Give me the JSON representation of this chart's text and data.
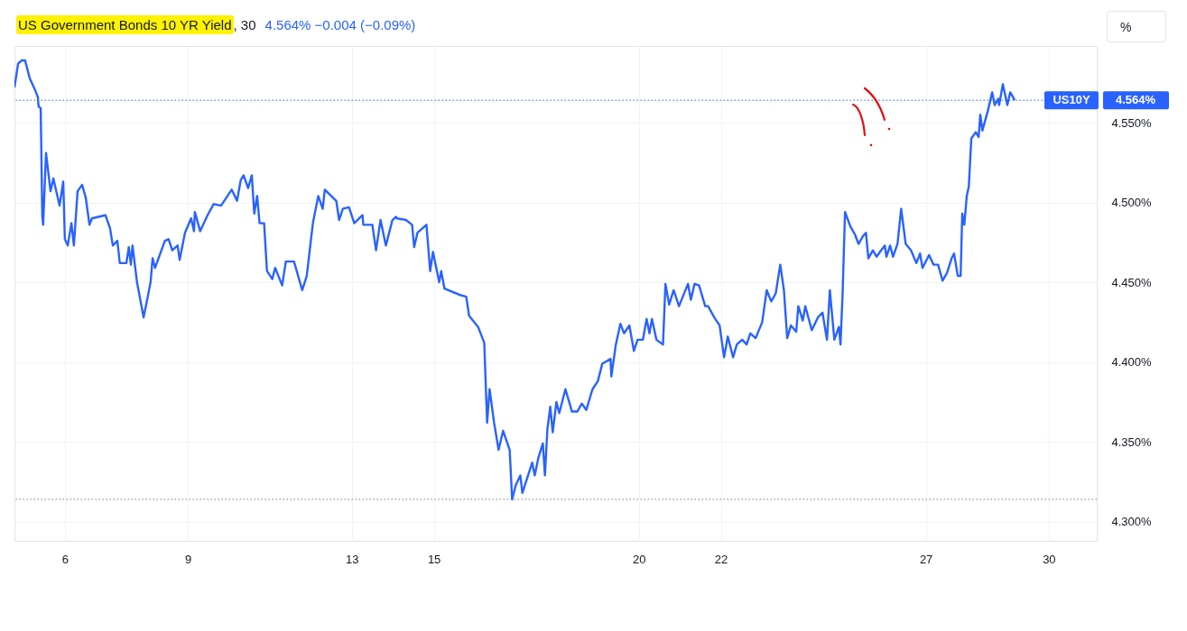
{
  "chart_data": {
    "type": "line",
    "title": "US Government Bonds 10 YR Yield",
    "subtitle": "4.564%  −0.004 (−0.09%)",
    "annotations": [
      ", 30",
      "%"
    ],
    "xlim": [
      4.77,
      31.17
    ],
    "xticks": [
      6,
      9,
      13,
      15,
      20,
      22,
      27,
      30
    ],
    "ylim": [
      4.288,
      4.598
    ],
    "yticks": [
      {
        "value": 4.3,
        "label": "4.300%"
      },
      {
        "value": 4.35,
        "label": "4.350%"
      },
      {
        "value": 4.4,
        "label": "4.400%"
      },
      {
        "value": 4.45,
        "label": "4.450%"
      },
      {
        "value": 4.5,
        "label": "4.500%"
      },
      {
        "value": 4.55,
        "label": "4.550%"
      }
    ],
    "grid": true,
    "line_style": "solid",
    "ref_lines": [
      {
        "axis": "y",
        "value": 4.564,
        "label": "4.564%",
        "color": "#2962ff",
        "line_style": "dotted"
      },
      {
        "axis": "y",
        "value": 4.314,
        "color": "#787b86",
        "line_style": "dotted"
      }
    ],
    "series": [
      {
        "name": "US10Y",
        "color": "#2962ff",
        "x": [
          4.77,
          4.86,
          4.95,
          5.03,
          5.14,
          5.28,
          5.34,
          5.36,
          5.41,
          5.45,
          5.47,
          5.54,
          5.65,
          5.72,
          5.87,
          5.96,
          6.0,
          6.07,
          6.16,
          6.22,
          6.31,
          6.42,
          6.51,
          6.6,
          6.66,
          6.99,
          7.1,
          7.17,
          7.28,
          7.34,
          7.5,
          7.56,
          7.61,
          7.65,
          7.76,
          7.92,
          8.0,
          8.09,
          8.14,
          8.2,
          8.44,
          8.53,
          8.62,
          8.75,
          8.8,
          8.93,
          9.08,
          9.15,
          9.17,
          9.3,
          9.48,
          9.63,
          9.81,
          10.07,
          10.2,
          10.29,
          10.36,
          10.47,
          10.56,
          10.62,
          10.69,
          10.75,
          10.86,
          10.93,
          11.06,
          11.13,
          11.3,
          11.39,
          11.59,
          11.79,
          11.9,
          12.05,
          12.18,
          12.29,
          12.34,
          12.62,
          12.69,
          12.78,
          12.93,
          13.06,
          13.26,
          13.28,
          13.5,
          13.59,
          13.7,
          13.83,
          13.99,
          14.08,
          14.1,
          14.32,
          14.47,
          14.52,
          14.6,
          14.82,
          14.91,
          14.98,
          15.13,
          15.18,
          15.26,
          15.64,
          15.79,
          15.86,
          16.08,
          16.23,
          16.3,
          16.36,
          16.47,
          16.58,
          16.69,
          16.85,
          16.91,
          17.0,
          17.11,
          17.16,
          17.4,
          17.46,
          17.55,
          17.66,
          17.71,
          17.77,
          17.84,
          17.9,
          17.99,
          18.06,
          18.21,
          18.37,
          18.5,
          18.61,
          18.72,
          18.87,
          19.0,
          19.11,
          19.31,
          19.33,
          19.44,
          19.55,
          19.64,
          19.77,
          19.88,
          19.97,
          20.1,
          20.19,
          20.26,
          20.32,
          20.43,
          20.59,
          20.65,
          20.74,
          20.85,
          20.98,
          21.2,
          21.27,
          21.36,
          21.47,
          21.62,
          21.69,
          21.84,
          21.97,
          22.08,
          22.17,
          22.3,
          22.39,
          22.52,
          22.63,
          22.72,
          22.85,
          23.01,
          23.12,
          23.23,
          23.34,
          23.45,
          23.54,
          23.62,
          23.71,
          23.84,
          23.89,
          24.0,
          24.06,
          24.22,
          24.37,
          24.48,
          24.59,
          24.66,
          24.77,
          24.88,
          24.92,
          24.97,
          25.03,
          25.16,
          25.27,
          25.36,
          25.47,
          25.54,
          25.6,
          25.71,
          25.8,
          25.91,
          26.0,
          26.04,
          26.13,
          26.2,
          26.31,
          26.4,
          26.51,
          26.64,
          26.77,
          26.86,
          26.92,
          27.08,
          27.19,
          27.3,
          27.41,
          27.52,
          27.63,
          27.69,
          27.78,
          27.85,
          27.89,
          27.94,
          28.0,
          28.05,
          28.11,
          28.22,
          28.29,
          28.33,
          28.38,
          28.51,
          28.62,
          28.68,
          28.77,
          28.79,
          28.88,
          28.99,
          29.06,
          29.17
        ],
        "values": [
          4.572,
          4.587,
          4.589,
          4.589,
          4.578,
          4.57,
          4.566,
          4.56,
          4.559,
          4.491,
          4.486,
          4.531,
          4.507,
          4.515,
          4.498,
          4.513,
          4.477,
          4.473,
          4.487,
          4.473,
          4.507,
          4.511,
          4.503,
          4.486,
          4.49,
          4.492,
          4.484,
          4.473,
          4.476,
          4.462,
          4.462,
          4.472,
          4.461,
          4.473,
          4.45,
          4.428,
          4.438,
          4.45,
          4.465,
          4.459,
          4.476,
          4.477,
          4.47,
          4.473,
          4.464,
          4.481,
          4.49,
          4.482,
          4.494,
          4.482,
          4.492,
          4.499,
          4.498,
          4.508,
          4.501,
          4.514,
          4.517,
          4.509,
          4.517,
          4.493,
          4.504,
          4.487,
          4.487,
          4.457,
          4.452,
          4.459,
          4.448,
          4.463,
          4.463,
          4.445,
          4.454,
          4.487,
          4.504,
          4.496,
          4.508,
          4.501,
          4.489,
          4.496,
          4.497,
          4.487,
          4.492,
          4.486,
          4.486,
          4.47,
          4.489,
          4.473,
          4.489,
          4.491,
          4.49,
          4.489,
          4.486,
          4.472,
          4.481,
          4.486,
          4.457,
          4.469,
          4.45,
          4.457,
          4.446,
          4.442,
          4.441,
          4.429,
          4.422,
          4.412,
          4.362,
          4.383,
          4.362,
          4.345,
          4.357,
          4.345,
          4.314,
          4.323,
          4.329,
          4.318,
          4.337,
          4.329,
          4.34,
          4.349,
          4.329,
          4.358,
          4.372,
          4.356,
          4.375,
          4.368,
          4.383,
          4.369,
          4.369,
          4.374,
          4.37,
          4.383,
          4.388,
          4.399,
          4.402,
          4.391,
          4.411,
          4.424,
          4.418,
          4.423,
          4.407,
          4.414,
          4.414,
          4.427,
          4.418,
          4.427,
          4.414,
          4.411,
          4.449,
          4.436,
          4.445,
          4.435,
          4.449,
          4.439,
          4.449,
          4.448,
          4.435,
          4.435,
          4.428,
          4.423,
          4.403,
          4.416,
          4.403,
          4.411,
          4.414,
          4.411,
          4.418,
          4.415,
          4.425,
          4.445,
          4.438,
          4.443,
          4.461,
          4.445,
          4.415,
          4.423,
          4.419,
          4.435,
          4.426,
          4.435,
          4.42,
          4.428,
          4.431,
          4.414,
          4.445,
          4.414,
          4.422,
          4.411,
          4.442,
          4.494,
          4.485,
          4.48,
          4.474,
          4.479,
          4.481,
          4.465,
          4.47,
          4.466,
          4.47,
          4.473,
          4.466,
          4.473,
          4.466,
          4.474,
          4.496,
          4.474,
          4.47,
          4.462,
          4.468,
          4.459,
          4.467,
          4.461,
          4.461,
          4.451,
          4.456,
          4.465,
          4.468,
          4.454,
          4.454,
          4.493,
          4.486,
          4.504,
          4.51,
          4.54,
          4.544,
          4.541,
          4.555,
          4.545,
          4.557,
          4.569,
          4.561,
          4.565,
          4.561,
          4.574,
          4.561,
          4.569,
          4.564
        ]
      }
    ]
  }
}
